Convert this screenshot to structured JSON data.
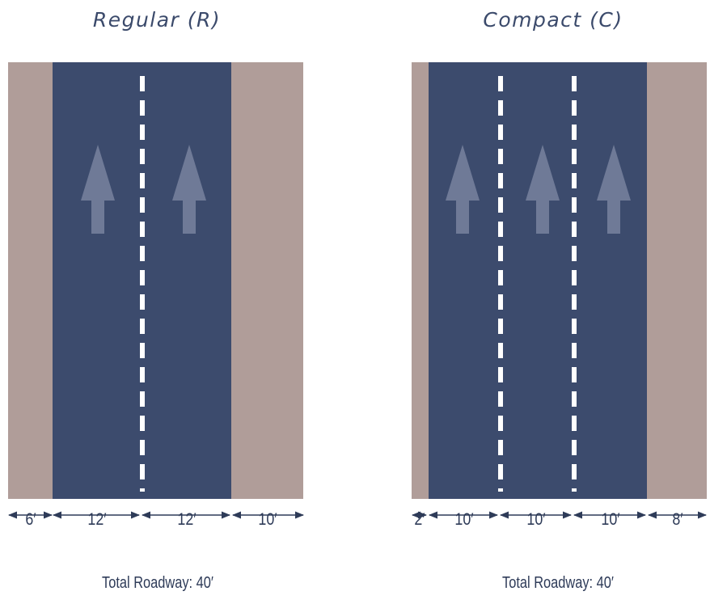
{
  "colors": {
    "shoulder": "#b09d99",
    "roadway": "#3c4b6d",
    "lane_line": "#ffffff",
    "arrow": "#6f7a97",
    "text": "#2e3b58"
  },
  "regular": {
    "title": "Regular (R)",
    "widths": [
      "6′",
      "12′",
      "12′",
      "10′"
    ],
    "total": "Total Roadway: 40′",
    "lanes": 2,
    "arrow_icon": "up-arrow-icon"
  },
  "compact": {
    "title": "Compact (C)",
    "widths": [
      "2′",
      "10′",
      "10′",
      "10′",
      "8′"
    ],
    "total": "Total Roadway: 40′",
    "lanes": 3,
    "arrow_icon": "up-arrow-icon"
  }
}
